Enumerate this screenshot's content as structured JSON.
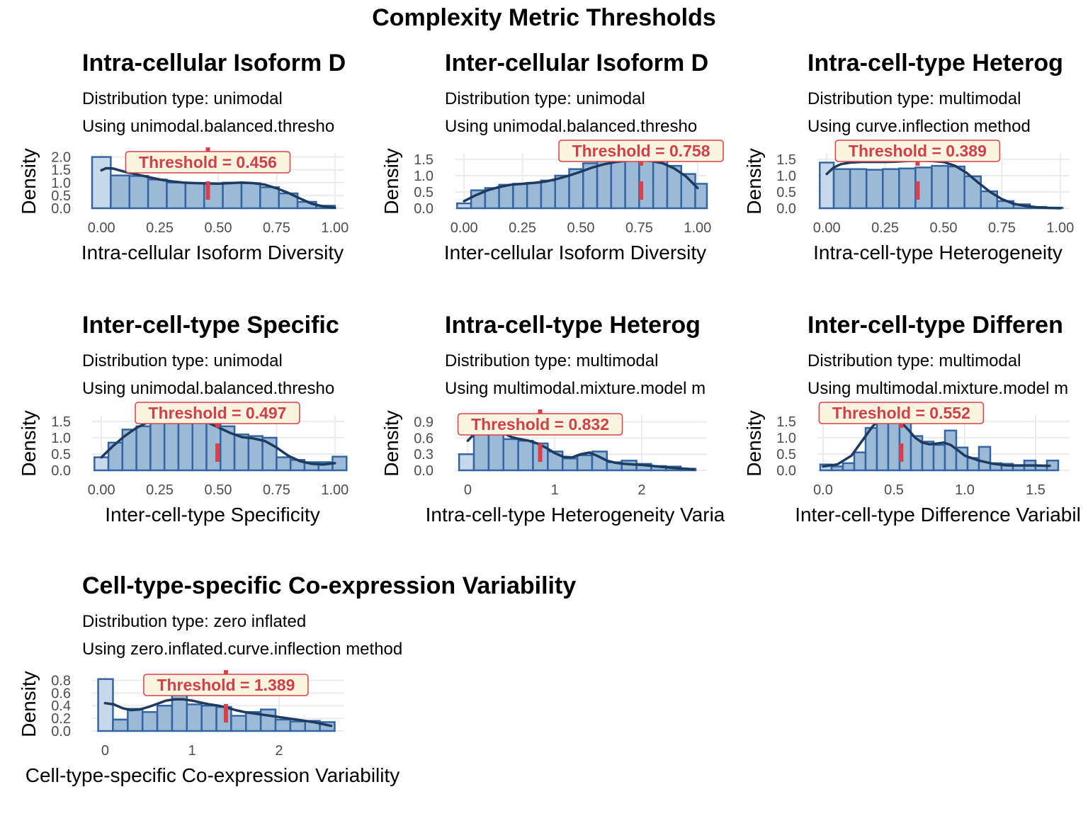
{
  "figure": {
    "title": "Complexity Metric Thresholds",
    "ylabel": "Density",
    "colors": {
      "bar_fill": "#9bbad7",
      "bar_fill_first": "#c6d8ea",
      "bar_stroke": "#3465a0",
      "density_line": "#1f3a5f",
      "threshold": "#d9404a",
      "label_bg": "#fbf4de",
      "label_border": "#d9404a",
      "grid": "#ebebeb"
    }
  },
  "chart_data": [
    {
      "type": "bar",
      "title": "Intra-cellular Isoform D",
      "subtitle_1": "Distribution type: unimodal",
      "subtitle_2": "Using unimodal.balanced.thresho",
      "xlabel": "Intra-cellular Isoform Diversity",
      "ylabel": "Density",
      "threshold": 0.456,
      "threshold_label": "Threshold = 0.456",
      "xlim": [
        -0.04,
        1.04
      ],
      "ylim": [
        0,
        2.1
      ],
      "x_ticks": [
        {
          "v": 0,
          "t": "0.00"
        },
        {
          "v": 0.25,
          "t": "0.25"
        },
        {
          "v": 0.5,
          "t": "0.50"
        },
        {
          "v": 0.75,
          "t": "0.75"
        },
        {
          "v": 1,
          "t": "1.00"
        }
      ],
      "y_ticks": [
        {
          "v": 0,
          "t": "0.0"
        },
        {
          "v": 0.5,
          "t": "0.5"
        },
        {
          "v": 1,
          "t": "1.0"
        },
        {
          "v": 1.5,
          "t": "1.5"
        },
        {
          "v": 2,
          "t": "2.0"
        }
      ],
      "bin_edges": [
        -0.04,
        0.04,
        0.12,
        0.2,
        0.28,
        0.36,
        0.44,
        0.52,
        0.6,
        0.68,
        0.76,
        0.84,
        0.92,
        1.0
      ],
      "values": [
        2.0,
        1.28,
        1.26,
        1.12,
        1.0,
        0.98,
        0.95,
        1.0,
        0.98,
        0.82,
        0.58,
        0.25,
        0.1
      ],
      "density_x": [
        0.0,
        0.02,
        0.05,
        0.1,
        0.15,
        0.2,
        0.25,
        0.3,
        0.35,
        0.4,
        0.45,
        0.5,
        0.55,
        0.6,
        0.65,
        0.7,
        0.75,
        0.8,
        0.85,
        0.9,
        0.95,
        1.0
      ],
      "density_y": [
        1.48,
        1.56,
        1.55,
        1.42,
        1.32,
        1.22,
        1.12,
        1.05,
        1.0,
        0.98,
        0.97,
        0.96,
        0.98,
        1.0,
        0.98,
        0.92,
        0.78,
        0.6,
        0.38,
        0.18,
        0.07,
        0.02
      ]
    },
    {
      "type": "bar",
      "title": "Inter-cellular Isoform D",
      "subtitle_1": "Distribution type: unimodal",
      "subtitle_2": "Using unimodal.balanced.thresho",
      "xlabel": "Inter-cellular Isoform Diversity",
      "ylabel": "Density",
      "threshold": 0.758,
      "threshold_label": "Threshold = 0.758",
      "xlim": [
        -0.04,
        1.04
      ],
      "ylim": [
        0,
        1.65
      ],
      "x_ticks": [
        {
          "v": 0,
          "t": "0.00"
        },
        {
          "v": 0.25,
          "t": "0.25"
        },
        {
          "v": 0.5,
          "t": "0.50"
        },
        {
          "v": 0.75,
          "t": "0.75"
        },
        {
          "v": 1,
          "t": "1.00"
        }
      ],
      "y_ticks": [
        {
          "v": 0,
          "t": "0.0"
        },
        {
          "v": 0.5,
          "t": "0.5"
        },
        {
          "v": 1,
          "t": "1.0"
        },
        {
          "v": 1.5,
          "t": "1.5"
        }
      ],
      "bin_edges": [
        -0.03,
        0.03,
        0.09,
        0.15,
        0.21,
        0.27,
        0.33,
        0.39,
        0.45,
        0.51,
        0.57,
        0.63,
        0.69,
        0.75,
        0.81,
        0.87,
        0.93,
        0.99,
        1.04
      ],
      "values": [
        0.15,
        0.55,
        0.62,
        0.72,
        0.75,
        0.78,
        0.85,
        1.0,
        1.2,
        1.38,
        1.5,
        1.58,
        1.62,
        1.55,
        1.48,
        1.3,
        1.05,
        0.75
      ],
      "density_x": [
        0.0,
        0.05,
        0.1,
        0.15,
        0.2,
        0.25,
        0.3,
        0.35,
        0.4,
        0.45,
        0.5,
        0.55,
        0.6,
        0.65,
        0.7,
        0.75,
        0.8,
        0.85,
        0.9,
        0.95,
        1.0
      ],
      "density_y": [
        0.22,
        0.4,
        0.55,
        0.65,
        0.72,
        0.75,
        0.78,
        0.82,
        0.9,
        1.0,
        1.12,
        1.25,
        1.35,
        1.42,
        1.46,
        1.48,
        1.45,
        1.38,
        1.22,
        0.98,
        0.62
      ]
    },
    {
      "type": "bar",
      "title": "Intra-cell-type Heterog",
      "subtitle_1": "Distribution type: multimodal",
      "subtitle_2": "Using curve.inflection method",
      "xlabel": "Intra-cell-type Heterogeneity",
      "ylabel": "Density",
      "threshold": 0.389,
      "threshold_label": "Threshold = 0.389",
      "xlim": [
        -0.04,
        1.04
      ],
      "ylim": [
        0,
        1.65
      ],
      "x_ticks": [
        {
          "v": 0,
          "t": "0.00"
        },
        {
          "v": 0.25,
          "t": "0.25"
        },
        {
          "v": 0.5,
          "t": "0.50"
        },
        {
          "v": 0.75,
          "t": "0.75"
        },
        {
          "v": 1,
          "t": "1.00"
        }
      ],
      "y_ticks": [
        {
          "v": 0,
          "t": "0.0"
        },
        {
          "v": 0.5,
          "t": "0.5"
        },
        {
          "v": 1,
          "t": "1.0"
        },
        {
          "v": 1.5,
          "t": "1.5"
        }
      ],
      "bin_edges": [
        -0.03,
        0.03,
        0.1,
        0.17,
        0.24,
        0.31,
        0.38,
        0.45,
        0.52,
        0.59,
        0.66,
        0.73,
        0.8,
        0.87,
        0.94,
        1.01
      ],
      "values": [
        1.4,
        1.2,
        1.2,
        1.18,
        1.2,
        1.22,
        1.25,
        1.3,
        1.28,
        0.98,
        0.52,
        0.22,
        0.12,
        0.04,
        0.02
      ],
      "density_x": [
        0.0,
        0.03,
        0.06,
        0.1,
        0.15,
        0.2,
        0.25,
        0.3,
        0.35,
        0.4,
        0.45,
        0.5,
        0.55,
        0.6,
        0.65,
        0.7,
        0.75,
        0.8,
        0.85,
        0.9,
        0.95,
        1.0
      ],
      "density_y": [
        1.05,
        1.25,
        1.35,
        1.4,
        1.42,
        1.42,
        1.42,
        1.43,
        1.45,
        1.46,
        1.45,
        1.42,
        1.3,
        1.08,
        0.78,
        0.5,
        0.28,
        0.14,
        0.07,
        0.03,
        0.01,
        0.0
      ]
    },
    {
      "type": "bar",
      "title": "Inter-cell-type Specific",
      "subtitle_1": "Distribution type: unimodal",
      "subtitle_2": "Using unimodal.balanced.thresho",
      "xlabel": "Inter-cell-type Specificity",
      "ylabel": "Density",
      "threshold": 0.497,
      "threshold_label": "Threshold = 0.497",
      "xlim": [
        -0.04,
        1.04
      ],
      "ylim": [
        0,
        1.65
      ],
      "x_ticks": [
        {
          "v": 0,
          "t": "0.00"
        },
        {
          "v": 0.25,
          "t": "0.25"
        },
        {
          "v": 0.5,
          "t": "0.50"
        },
        {
          "v": 0.75,
          "t": "0.75"
        },
        {
          "v": 1,
          "t": "1.00"
        }
      ],
      "y_ticks": [
        {
          "v": 0,
          "t": "0.0"
        },
        {
          "v": 0.5,
          "t": "0.5"
        },
        {
          "v": 1,
          "t": "1.0"
        },
        {
          "v": 1.5,
          "t": "1.5"
        }
      ],
      "bin_edges": [
        -0.03,
        0.03,
        0.09,
        0.15,
        0.21,
        0.27,
        0.33,
        0.39,
        0.45,
        0.51,
        0.57,
        0.63,
        0.69,
        0.75,
        0.81,
        0.87,
        0.93,
        0.99,
        1.05
      ],
      "values": [
        0.4,
        0.85,
        1.25,
        1.35,
        1.6,
        1.62,
        1.62,
        1.55,
        1.6,
        1.35,
        1.1,
        1.05,
        1.0,
        0.4,
        0.32,
        0.25,
        0.25,
        0.42
      ],
      "density_x": [
        0.0,
        0.05,
        0.1,
        0.15,
        0.2,
        0.25,
        0.3,
        0.35,
        0.4,
        0.45,
        0.5,
        0.55,
        0.6,
        0.65,
        0.7,
        0.75,
        0.8,
        0.85,
        0.9,
        0.95,
        1.0
      ],
      "density_y": [
        0.4,
        0.75,
        1.05,
        1.3,
        1.48,
        1.58,
        1.62,
        1.62,
        1.58,
        1.48,
        1.32,
        1.15,
        1.02,
        0.98,
        0.9,
        0.7,
        0.45,
        0.28,
        0.2,
        0.18,
        0.22
      ]
    },
    {
      "type": "bar",
      "title": "Intra-cell-type Heterog",
      "subtitle_1": "Distribution type: multimodal",
      "subtitle_2": "Using multimodal.mixture.model m",
      "xlabel": "Intra-cell-type Heterogeneity Varia",
      "ylabel": "Density",
      "threshold": 0.832,
      "threshold_label": "Threshold = 0.832",
      "xlim": [
        -0.15,
        2.75
      ],
      "ylim": [
        0,
        1.0
      ],
      "x_ticks": [
        {
          "v": 0,
          "t": "0"
        },
        {
          "v": 1,
          "t": "1"
        },
        {
          "v": 2,
          "t": "2"
        }
      ],
      "y_ticks": [
        {
          "v": 0,
          "t": "0.0"
        },
        {
          "v": 0.3,
          "t": "0.3"
        },
        {
          "v": 0.6,
          "t": "0.6"
        },
        {
          "v": 0.9,
          "t": "0.9"
        }
      ],
      "bin_edges": [
        -0.1,
        0.07,
        0.24,
        0.41,
        0.58,
        0.75,
        0.92,
        1.09,
        1.26,
        1.43,
        1.6,
        1.77,
        1.94,
        2.11,
        2.28,
        2.45,
        2.62
      ],
      "values": [
        0.3,
        0.95,
        1.0,
        0.58,
        0.55,
        0.5,
        0.35,
        0.22,
        0.28,
        0.35,
        0.15,
        0.18,
        0.12,
        0.08,
        0.07,
        0.03
      ],
      "density_x": [
        0.0,
        0.1,
        0.2,
        0.3,
        0.4,
        0.5,
        0.6,
        0.7,
        0.8,
        0.9,
        1.0,
        1.1,
        1.2,
        1.3,
        1.4,
        1.5,
        1.6,
        1.7,
        1.8,
        1.9,
        2.0,
        2.2,
        2.4,
        2.6
      ],
      "density_y": [
        0.55,
        0.72,
        0.78,
        0.76,
        0.7,
        0.62,
        0.58,
        0.55,
        0.5,
        0.42,
        0.32,
        0.25,
        0.24,
        0.3,
        0.33,
        0.26,
        0.18,
        0.14,
        0.12,
        0.11,
        0.1,
        0.07,
        0.04,
        0.02
      ]
    },
    {
      "type": "bar",
      "title": "Inter-cell-type Differen",
      "subtitle_1": "Distribution type: multimodal",
      "subtitle_2": "Using multimodal.mixture.model m",
      "xlabel": "Inter-cell-type Difference Variabil",
      "ylabel": "Density",
      "threshold": 0.552,
      "threshold_label": "Threshold = 0.552",
      "xlim": [
        -0.04,
        1.74
      ],
      "ylim": [
        0,
        1.65
      ],
      "x_ticks": [
        {
          "v": 0,
          "t": "0.0"
        },
        {
          "v": 0.5,
          "t": "0.5"
        },
        {
          "v": 1,
          "t": "1.0"
        },
        {
          "v": 1.5,
          "t": "1.5"
        }
      ],
      "y_ticks": [
        {
          "v": 0,
          "t": "0.0"
        },
        {
          "v": 0.5,
          "t": "0.5"
        },
        {
          "v": 1,
          "t": "1.0"
        },
        {
          "v": 1.5,
          "t": "1.5"
        }
      ],
      "bin_edges": [
        -0.02,
        0.06,
        0.14,
        0.22,
        0.3,
        0.38,
        0.46,
        0.54,
        0.62,
        0.7,
        0.78,
        0.86,
        0.94,
        1.02,
        1.1,
        1.18,
        1.26,
        1.34,
        1.42,
        1.5,
        1.58,
        1.66
      ],
      "values": [
        0.18,
        0.12,
        0.22,
        0.55,
        1.3,
        1.6,
        1.62,
        1.55,
        1.05,
        0.88,
        0.78,
        1.22,
        0.7,
        0.38,
        0.72,
        0.22,
        0.2,
        0.15,
        0.3,
        0.15,
        0.3
      ],
      "density_x": [
        0.0,
        0.1,
        0.2,
        0.3,
        0.35,
        0.4,
        0.45,
        0.5,
        0.55,
        0.6,
        0.65,
        0.7,
        0.75,
        0.8,
        0.85,
        0.9,
        0.95,
        1.0,
        1.1,
        1.2,
        1.3,
        1.4,
        1.5,
        1.6
      ],
      "density_y": [
        0.12,
        0.18,
        0.45,
        1.05,
        1.35,
        1.55,
        1.62,
        1.6,
        1.48,
        1.25,
        1.0,
        0.85,
        0.8,
        0.82,
        0.85,
        0.78,
        0.62,
        0.45,
        0.3,
        0.2,
        0.15,
        0.15,
        0.15,
        0.14
      ]
    },
    {
      "type": "bar",
      "title": "Cell-type-specific Co-expression Variability",
      "subtitle_1": "Distribution type: zero inflated",
      "subtitle_2": "Using zero.inflated.curve.inflection method",
      "xlabel": "Cell-type-specific Co-expression Variability",
      "ylabel": "Density",
      "threshold": 1.389,
      "threshold_label": "Threshold = 1.389",
      "xlim": [
        -0.15,
        2.75
      ],
      "ylim": [
        0,
        0.85
      ],
      "x_ticks": [
        {
          "v": 0,
          "t": "0"
        },
        {
          "v": 1,
          "t": "1"
        },
        {
          "v": 2,
          "t": "2"
        }
      ],
      "y_ticks": [
        {
          "v": 0,
          "t": "0.0"
        },
        {
          "v": 0.2,
          "t": "0.2"
        },
        {
          "v": 0.4,
          "t": "0.4"
        },
        {
          "v": 0.6,
          "t": "0.6"
        },
        {
          "v": 0.8,
          "t": "0.8"
        }
      ],
      "bin_edges": [
        -0.08,
        0.09,
        0.26,
        0.43,
        0.6,
        0.77,
        0.94,
        1.11,
        1.28,
        1.45,
        1.62,
        1.79,
        1.96,
        2.13,
        2.3,
        2.47,
        2.64
      ],
      "values": [
        0.82,
        0.18,
        0.35,
        0.3,
        0.4,
        0.58,
        0.42,
        0.4,
        0.38,
        0.24,
        0.3,
        0.34,
        0.18,
        0.15,
        0.16,
        0.14
      ],
      "density_x": [
        0.0,
        0.1,
        0.2,
        0.3,
        0.4,
        0.5,
        0.6,
        0.7,
        0.8,
        0.9,
        1.0,
        1.1,
        1.2,
        1.3,
        1.4,
        1.5,
        1.6,
        1.7,
        1.8,
        1.9,
        2.0,
        2.2,
        2.4,
        2.6
      ],
      "density_y": [
        0.44,
        0.42,
        0.36,
        0.33,
        0.34,
        0.38,
        0.43,
        0.48,
        0.5,
        0.5,
        0.48,
        0.45,
        0.42,
        0.4,
        0.37,
        0.33,
        0.3,
        0.28,
        0.26,
        0.24,
        0.22,
        0.18,
        0.14,
        0.08
      ]
    }
  ]
}
